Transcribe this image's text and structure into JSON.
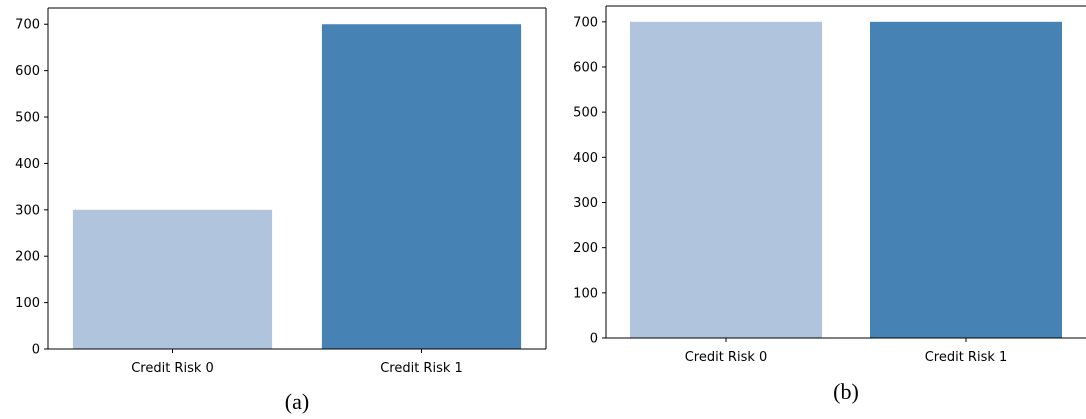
{
  "chart_data": [
    {
      "type": "bar",
      "panel_label": "(a)",
      "categories": [
        "Credit Risk 0",
        "Credit Risk 1"
      ],
      "values": [
        300,
        700
      ],
      "bar_colors": [
        "#b0c4de",
        "#4682b4"
      ],
      "ylim": [
        0,
        735
      ],
      "yticks": [
        "0",
        "100",
        "200",
        "300",
        "400",
        "500",
        "600",
        "700"
      ],
      "grid": false,
      "title": "",
      "xlabel": "",
      "ylabel": ""
    },
    {
      "type": "bar",
      "panel_label": "(b)",
      "categories": [
        "Credit Risk 0",
        "Credit Risk 1"
      ],
      "values": [
        700,
        700
      ],
      "bar_colors": [
        "#b0c4de",
        "#4682b4"
      ],
      "ylim": [
        0,
        735
      ],
      "yticks": [
        "0",
        "100",
        "200",
        "300",
        "400",
        "500",
        "600",
        "700"
      ],
      "grid": false,
      "title": "",
      "xlabel": "",
      "ylabel": ""
    }
  ]
}
